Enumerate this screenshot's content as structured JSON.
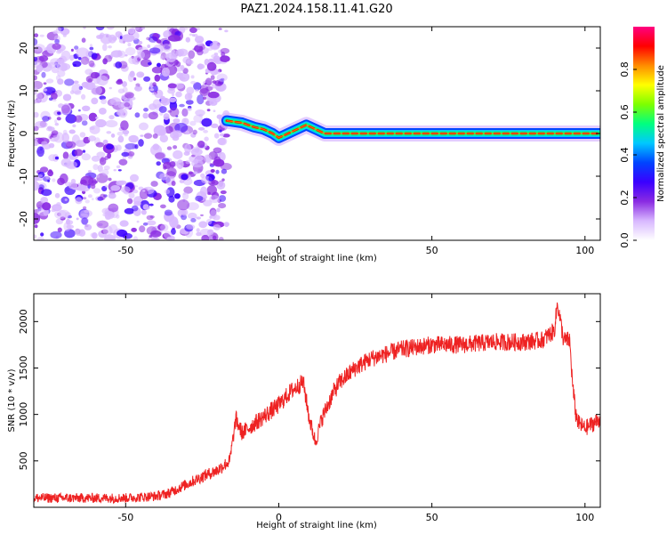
{
  "title": "PAZ1.2024.158.11.41.G20",
  "chart_data": [
    {
      "type": "heatmap",
      "xlabel": "Height of straight line (km)",
      "ylabel": "Frequency (Hz)",
      "xlim": [
        -80,
        105
      ],
      "ylim": [
        -25,
        25
      ],
      "xticks": [
        "-50",
        "0",
        "50",
        "100"
      ],
      "yticks": [
        "-20",
        "-10",
        "0",
        "10",
        "20"
      ],
      "colorbar": {
        "label": "Normalized spectral amplitude",
        "range": [
          0,
          1
        ],
        "ticks": [
          "0.0",
          "0.2",
          "0.4",
          "0.6",
          "0.8"
        ]
      },
      "noise_region_x": [
        -80,
        -17
      ],
      "ridge": {
        "x": [
          -17,
          -12,
          -8,
          -5,
          -2,
          0,
          3,
          6,
          9,
          12,
          15,
          20,
          30,
          40,
          50,
          60,
          70,
          80,
          90,
          100,
          105
        ],
        "freq_hz": [
          3,
          2.5,
          1.5,
          1,
          0,
          -1,
          0,
          1,
          2,
          1,
          0,
          0,
          0,
          0,
          0,
          0,
          0,
          0,
          0,
          0,
          0
        ]
      },
      "colormap": [
        "#ffffff",
        "#d8b8ff",
        "#8a2be2",
        "#3a00ff",
        "#0044ff",
        "#00c8ff",
        "#00ff80",
        "#7dff00",
        "#ffff00",
        "#ff8c00",
        "#ff0000",
        "#ff0080"
      ]
    },
    {
      "type": "line",
      "xlabel": "Height of straight line (km)",
      "ylabel": "SNR (10 * v/v)",
      "xlim": [
        -80,
        105
      ],
      "ylim": [
        0,
        2300
      ],
      "xticks": [
        "-50",
        "0",
        "50",
        "100"
      ],
      "yticks": [
        "500",
        "1000",
        "1500",
        "2000"
      ],
      "series": [
        {
          "color": "#ee2222",
          "x": [
            -80,
            -70,
            -60,
            -50,
            -40,
            -36,
            -30,
            -25,
            -20,
            -16,
            -14,
            -12,
            -8,
            -4,
            0,
            4,
            8,
            10,
            12,
            14,
            16,
            18,
            20,
            25,
            30,
            40,
            50,
            60,
            70,
            80,
            86,
            90,
            91,
            93,
            95,
            96,
            97,
            98,
            100,
            105
          ],
          "y": [
            100,
            100,
            100,
            100,
            120,
            150,
            250,
            330,
            400,
            500,
            950,
            800,
            900,
            1000,
            1100,
            1250,
            1350,
            950,
            700,
            950,
            1100,
            1250,
            1350,
            1500,
            1600,
            1700,
            1750,
            1750,
            1780,
            1780,
            1800,
            1900,
            2200,
            1800,
            1800,
            1300,
            1000,
            900,
            850,
            950
          ],
          "noise_amplitude": 80
        }
      ]
    }
  ]
}
